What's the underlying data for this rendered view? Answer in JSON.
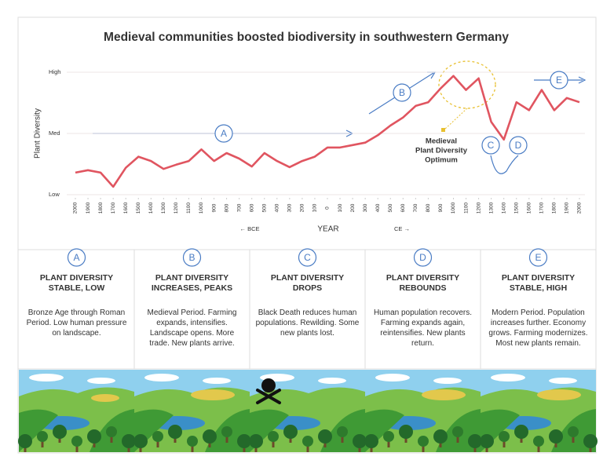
{
  "chart_data": {
    "type": "line",
    "title": "Medieval communities boosted biodiversity in southwestern Germany",
    "y_label": "Plant Diversity",
    "x_label": "YEAR",
    "era_labels": [
      "← BCE",
      "CE →"
    ],
    "x": [
      -2000,
      -1900,
      -1800,
      -1700,
      -1600,
      -1500,
      -1400,
      -1300,
      -1200,
      -1100,
      -1000,
      -900,
      -800,
      -700,
      -600,
      -500,
      -400,
      -300,
      -200,
      -100,
      0,
      100,
      200,
      300,
      400,
      500,
      600,
      700,
      800,
      900,
      1000,
      1100,
      1200,
      1300,
      1400,
      1500,
      1600,
      1700,
      1800,
      1900,
      2000
    ],
    "values": [
      0.36,
      0.4,
      0.36,
      0.13,
      0.44,
      0.62,
      0.55,
      0.42,
      0.49,
      0.55,
      0.74,
      0.55,
      0.68,
      0.59,
      0.46,
      0.68,
      0.55,
      0.45,
      0.55,
      0.62,
      0.77,
      0.77,
      0.81,
      0.85,
      0.97,
      1.13,
      1.26,
      1.45,
      1.51,
      1.74,
      1.94,
      1.71,
      1.9,
      1.19,
      0.9,
      1.51,
      1.38,
      1.71,
      1.38,
      1.58,
      1.51
    ],
    "color": "#e05560",
    "xlim": [
      -2000,
      2000
    ],
    "xticks": [
      {
        "value": -2000,
        "label": "2000"
      },
      {
        "value": -1900,
        "label": "1900"
      },
      {
        "value": -1800,
        "label": "1800"
      },
      {
        "value": -1700,
        "label": "1700"
      },
      {
        "value": -1600,
        "label": "1600"
      },
      {
        "value": -1500,
        "label": "1500"
      },
      {
        "value": -1400,
        "label": "1400"
      },
      {
        "value": -1300,
        "label": "1300"
      },
      {
        "value": -1200,
        "label": "1200"
      },
      {
        "value": -1100,
        "label": "1100"
      },
      {
        "value": -1000,
        "label": "1000"
      },
      {
        "value": -900,
        "label": "900"
      },
      {
        "value": -800,
        "label": "800"
      },
      {
        "value": -700,
        "label": "700"
      },
      {
        "value": -600,
        "label": "600"
      },
      {
        "value": -500,
        "label": "500"
      },
      {
        "value": -400,
        "label": "400"
      },
      {
        "value": -300,
        "label": "300"
      },
      {
        "value": -200,
        "label": "200"
      },
      {
        "value": -100,
        "label": "100"
      },
      0,
      100,
      200,
      300,
      400,
      500,
      600,
      700,
      800,
      900,
      1000,
      1100,
      1200,
      1300,
      1400,
      1500,
      1600,
      1700,
      1800,
      1900,
      2000
    ],
    "ylim": [
      0,
      2
    ],
    "yticks": [
      {
        "value": 0,
        "label": "Low"
      },
      {
        "value": 1,
        "label": "Med"
      },
      {
        "value": 2,
        "label": "High"
      }
    ],
    "grid": true,
    "markers": [
      "A",
      "B",
      "C",
      "D",
      "E"
    ],
    "optimum_label": [
      "Medieval",
      "Plant Diversity",
      "Optimum"
    ]
  },
  "panels": [
    {
      "letter": "A",
      "title": "PLANT DIVERSITY STABLE, LOW",
      "text": "Bronze Age through Roman Period. Low human pressure on landscape."
    },
    {
      "letter": "B",
      "title": "PLANT DIVERSITY INCREASES, PEAKS",
      "text": "Medieval Period. Farming expands, intensifies. Landscape opens. More trade. New plants arrive."
    },
    {
      "letter": "C",
      "title": "PLANT DIVERSITY DROPS",
      "text": "Black Death reduces human populations. Rewilding. Some new plants lost."
    },
    {
      "letter": "D",
      "title": "PLANT DIVERSITY REBOUNDS",
      "text": "Human population recovers. Farming expands again, reintensifies. New plants return."
    },
    {
      "letter": "E",
      "title": "PLANT DIVERSITY STABLE, HIGH",
      "text": "Modern Period. Population increases further. Economy grows. Farming modernizes. Most new plants remain."
    }
  ]
}
